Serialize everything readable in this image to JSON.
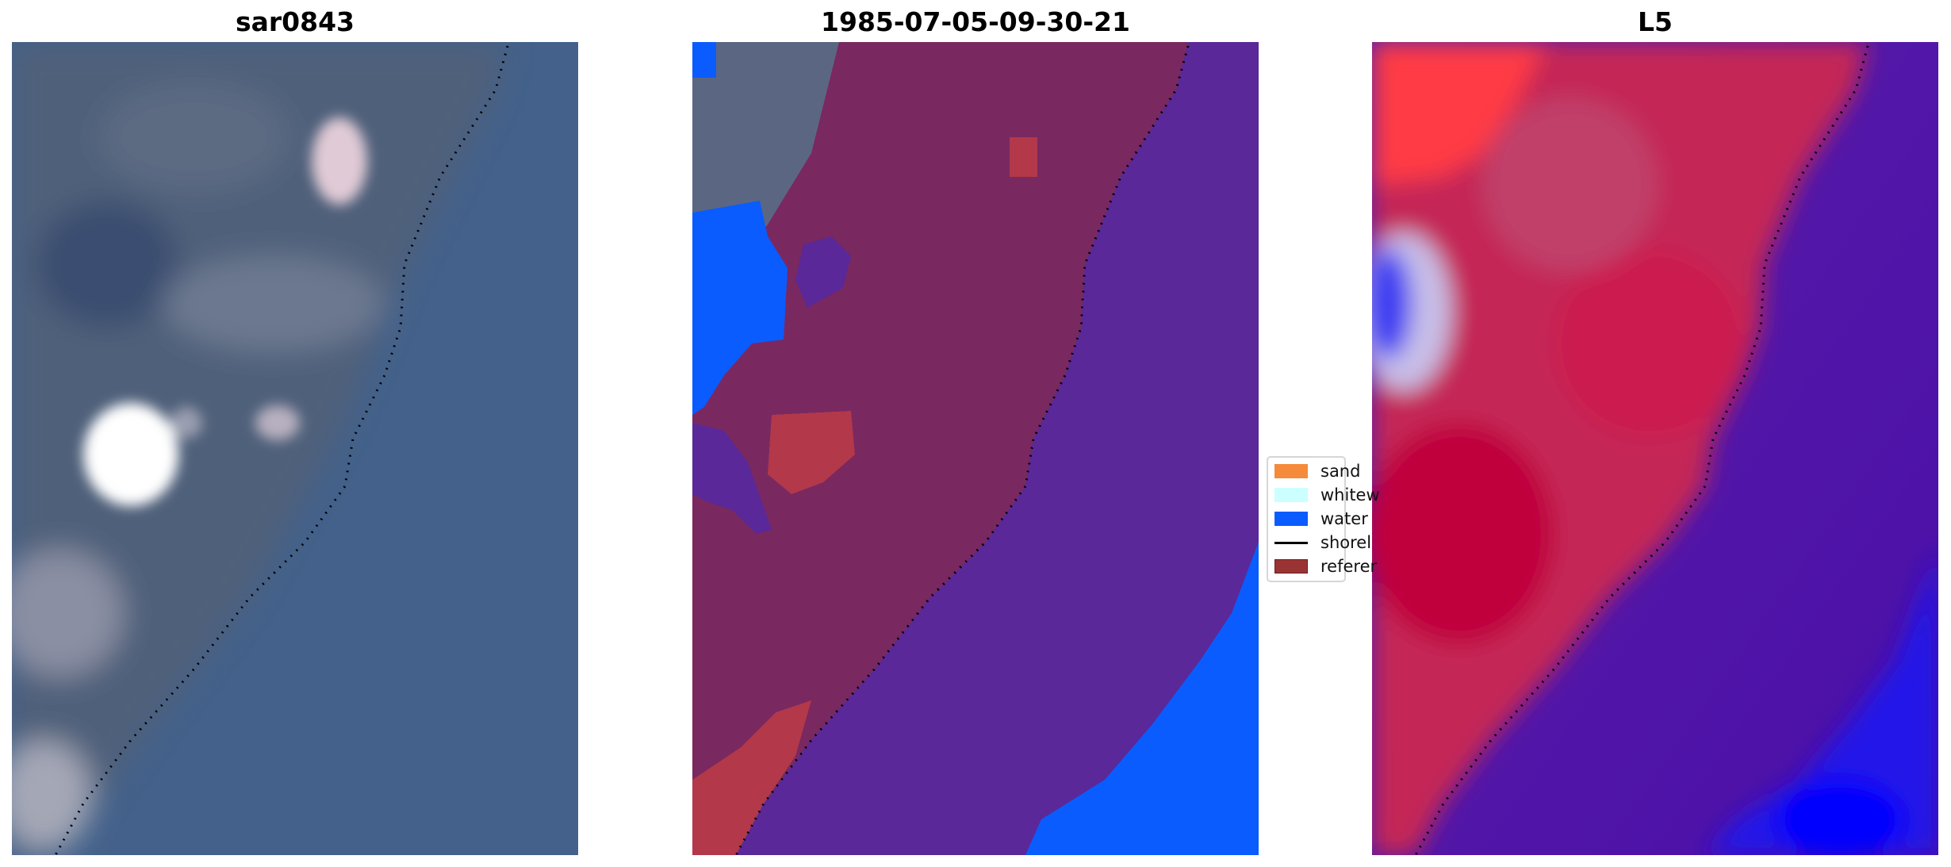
{
  "panels": [
    {
      "title": "sar0843"
    },
    {
      "title": "1985-07-05-09-30-21"
    },
    {
      "title": "L5"
    }
  ],
  "legend": {
    "items": [
      {
        "label": "sand",
        "color": "#f58b3a",
        "kind": "patch"
      },
      {
        "label": "whitew",
        "color": "#ccffff",
        "kind": "patch"
      },
      {
        "label": "water",
        "color": "#0a5cff",
        "kind": "patch"
      },
      {
        "label": "shorel",
        "color": "#000000",
        "kind": "line"
      },
      {
        "label": "referer",
        "color": "#9a3434",
        "kind": "patch"
      }
    ]
  },
  "colors": {
    "rgb_land": "#4f607a",
    "rgb_sea": "#43618a",
    "classified_land": "#7a2860",
    "classified_sea": "#5a2898",
    "classified_water": "#0a5cff",
    "index_land": "#c8224f",
    "index_sea": "#5a15a0",
    "index_water": "#1a10f0"
  }
}
